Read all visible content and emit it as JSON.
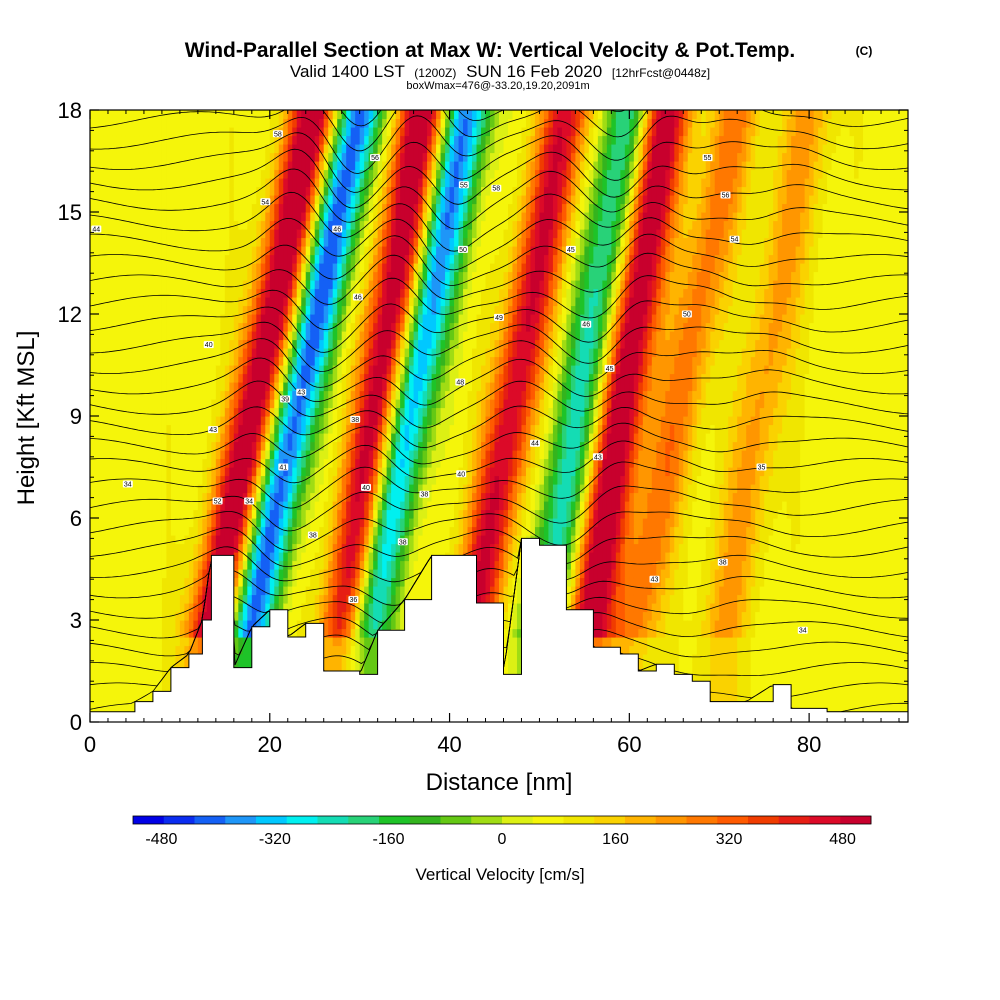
{
  "chart_data": {
    "type": "heatmap",
    "title": "Wind-Parallel Section at Max W: Vertical Velocity & Pot.Temp.",
    "title_mark": "(C)",
    "subtitle": {
      "valid": "Valid 1400 LST",
      "utc": "(1200Z)",
      "date": "SUN 16 Feb 2020",
      "forecast": "[12hrFcst@0448z]"
    },
    "info_line": "boxWmax=476@-33.20,19.20,2091m",
    "xlabel": "Distance [nm]",
    "ylabel": "Height [Kft MSL]",
    "xlim": [
      0,
      91
    ],
    "ylim": [
      0,
      18
    ],
    "x_ticks": [
      0,
      20,
      40,
      60,
      80
    ],
    "y_ticks": [
      0,
      3,
      6,
      9,
      12,
      15,
      18
    ],
    "colorbar": {
      "label": "Vertical Velocity [cm/s]",
      "range": [
        -520,
        520
      ],
      "step": 40,
      "tick_values": [
        -480,
        -320,
        -160,
        0,
        160,
        320,
        480
      ],
      "tick_labels": [
        "-480",
        "-320",
        "-160",
        "0",
        "160",
        "320",
        "480"
      ],
      "colors": [
        "#0000e6",
        "#0a2cf0",
        "#1460f5",
        "#1e96f8",
        "#00c8ff",
        "#00f0f0",
        "#14dcb4",
        "#28d278",
        "#1ec328",
        "#34b41e",
        "#64c814",
        "#a0dc14",
        "#dcf014",
        "#f5f50a",
        "#f0e600",
        "#fad200",
        "#ffb400",
        "#ff9600",
        "#ff7800",
        "#ff5a00",
        "#f03c00",
        "#e61e14",
        "#dc0a28",
        "#c8002d"
      ]
    },
    "w_field": {
      "units": "cm/s",
      "ridges": [
        {
          "x_at_base": 13,
          "x_at_top": 25,
          "amplitude": 480
        },
        {
          "x_at_base": 17,
          "x_at_top": 30,
          "amplitude": -470
        },
        {
          "x_at_base": 28,
          "x_at_top": 37,
          "amplitude": 470
        },
        {
          "x_at_base": 30,
          "x_at_top": 42,
          "amplitude": -440
        },
        {
          "x_at_base": 42,
          "x_at_top": 53,
          "amplitude": 380
        },
        {
          "x_at_base": 50,
          "x_at_top": 60,
          "amplitude": -300
        },
        {
          "x_at_base": 55,
          "x_at_top": 64,
          "amplitude": 460
        },
        {
          "x_at_base": 60,
          "x_at_top": 72,
          "amplitude": 200
        },
        {
          "x_at_base": 70,
          "x_at_top": 80,
          "amplitude": 150
        }
      ]
    },
    "terrain_top_kft": [
      [
        0,
        0.3
      ],
      [
        3,
        0.3
      ],
      [
        5,
        0.6
      ],
      [
        7,
        0.9
      ],
      [
        9,
        1.6
      ],
      [
        11,
        2.0
      ],
      [
        12.5,
        3.0
      ],
      [
        13.5,
        4.9
      ],
      [
        15.5,
        4.9
      ],
      [
        16,
        1.6
      ],
      [
        18,
        2.8
      ],
      [
        20,
        3.3
      ],
      [
        22,
        2.5
      ],
      [
        24,
        2.9
      ],
      [
        26,
        1.5
      ],
      [
        30,
        1.4
      ],
      [
        32,
        2.7
      ],
      [
        35,
        3.6
      ],
      [
        38,
        4.9
      ],
      [
        40,
        4.9
      ],
      [
        43,
        3.5
      ],
      [
        46,
        1.4
      ],
      [
        48,
        5.4
      ],
      [
        50,
        5.2
      ],
      [
        53,
        3.3
      ],
      [
        56,
        2.2
      ],
      [
        59,
        2.0
      ],
      [
        61,
        1.5
      ],
      [
        63,
        1.7
      ],
      [
        65,
        1.4
      ],
      [
        67,
        1.2
      ],
      [
        69,
        0.6
      ],
      [
        73,
        0.6
      ],
      [
        76,
        1.1
      ],
      [
        78,
        0.4
      ],
      [
        82,
        0.3
      ],
      [
        91,
        0.3
      ]
    ],
    "theta_contours": {
      "units": "C",
      "spacing_kft": 0.6,
      "labels": [
        {
          "text": "34",
          "x": 4.2,
          "h": 7.0
        },
        {
          "text": "44",
          "x": 0.7,
          "h": 14.5
        },
        {
          "text": "40",
          "x": 13.2,
          "h": 11.1
        },
        {
          "text": "43",
          "x": 13.7,
          "h": 8.6
        },
        {
          "text": "52",
          "x": 14.2,
          "h": 6.5
        },
        {
          "text": "34",
          "x": 17.7,
          "h": 6.5
        },
        {
          "text": "54",
          "x": 19.5,
          "h": 15.3
        },
        {
          "text": "58",
          "x": 20.9,
          "h": 17.3
        },
        {
          "text": "41",
          "x": 21.5,
          "h": 7.5
        },
        {
          "text": "39",
          "x": 21.7,
          "h": 9.5
        },
        {
          "text": "43",
          "x": 23.5,
          "h": 9.7
        },
        {
          "text": "38",
          "x": 24.8,
          "h": 5.5
        },
        {
          "text": "46",
          "x": 27.5,
          "h": 14.5
        },
        {
          "text": "36",
          "x": 29.3,
          "h": 3.6
        },
        {
          "text": "38",
          "x": 29.5,
          "h": 8.9
        },
        {
          "text": "46",
          "x": 29.8,
          "h": 12.5
        },
        {
          "text": "40",
          "x": 30.7,
          "h": 6.9
        },
        {
          "text": "56",
          "x": 31.7,
          "h": 16.6
        },
        {
          "text": "38",
          "x": 34.8,
          "h": 5.3
        },
        {
          "text": "38",
          "x": 37.2,
          "h": 6.7
        },
        {
          "text": "48",
          "x": 41.2,
          "h": 10.0
        },
        {
          "text": "40",
          "x": 41.3,
          "h": 7.3
        },
        {
          "text": "50",
          "x": 41.5,
          "h": 13.9
        },
        {
          "text": "55",
          "x": 41.6,
          "h": 15.8
        },
        {
          "text": "58",
          "x": 45.2,
          "h": 15.7
        },
        {
          "text": "49",
          "x": 45.5,
          "h": 11.9
        },
        {
          "text": "44",
          "x": 49.5,
          "h": 8.2
        },
        {
          "text": "45",
          "x": 53.5,
          "h": 13.9
        },
        {
          "text": "46",
          "x": 55.2,
          "h": 11.7
        },
        {
          "text": "43",
          "x": 56.5,
          "h": 7.8
        },
        {
          "text": "45",
          "x": 57.8,
          "h": 10.4
        },
        {
          "text": "43",
          "x": 62.8,
          "h": 4.2
        },
        {
          "text": "50",
          "x": 66.4,
          "h": 12.0
        },
        {
          "text": "55",
          "x": 68.7,
          "h": 16.6
        },
        {
          "text": "38",
          "x": 70.4,
          "h": 4.7
        },
        {
          "text": "56",
          "x": 70.7,
          "h": 15.5
        },
        {
          "text": "54",
          "x": 71.7,
          "h": 14.2
        },
        {
          "text": "35",
          "x": 74.7,
          "h": 7.5
        },
        {
          "text": "34",
          "x": 79.3,
          "h": 2.7
        }
      ]
    }
  }
}
